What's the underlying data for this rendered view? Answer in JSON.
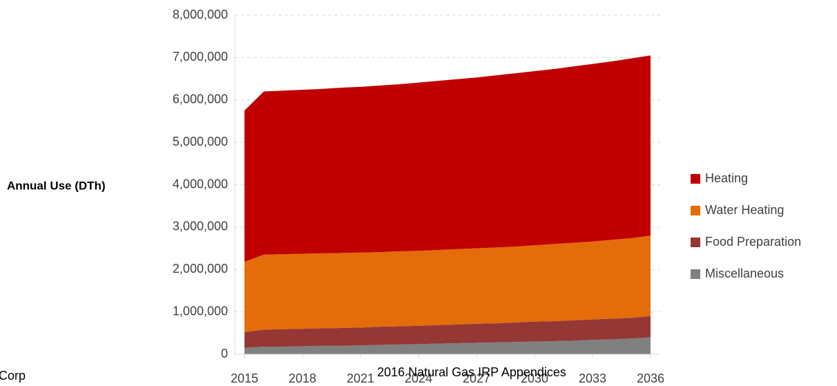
{
  "chart_data": {
    "type": "stacked_area",
    "y_label": "Annual Use (DTh)",
    "x": [
      2015,
      2016,
      2017,
      2018,
      2019,
      2020,
      2021,
      2022,
      2023,
      2024,
      2025,
      2026,
      2027,
      2028,
      2029,
      2030,
      2031,
      2032,
      2033,
      2034,
      2035,
      2036
    ],
    "series": [
      {
        "name": "Miscellaneous",
        "color": "#808080",
        "values": [
          150000,
          180000,
          180000,
          190000,
          200000,
          200000,
          210000,
          220000,
          230000,
          240000,
          250000,
          260000,
          270000,
          280000,
          290000,
          300000,
          310000,
          320000,
          340000,
          350000,
          370000,
          400000
        ]
      },
      {
        "name": "Food Preparation",
        "color": "#953735",
        "values": [
          370000,
          400000,
          410000,
          410000,
          410000,
          420000,
          420000,
          430000,
          430000,
          430000,
          440000,
          440000,
          450000,
          450000,
          460000,
          470000,
          470000,
          480000,
          480000,
          490000,
          490000,
          500000
        ]
      },
      {
        "name": "Water Heating",
        "color": "#e46c0a",
        "values": [
          1660000,
          1770000,
          1770000,
          1770000,
          1770000,
          1770000,
          1770000,
          1760000,
          1770000,
          1770000,
          1770000,
          1780000,
          1780000,
          1790000,
          1790000,
          1800000,
          1820000,
          1830000,
          1840000,
          1860000,
          1880000,
          1900000
        ]
      },
      {
        "name": "Heating",
        "color": "#c00000",
        "values": [
          3570000,
          3850000,
          3860000,
          3870000,
          3880000,
          3900000,
          3910000,
          3930000,
          3940000,
          3970000,
          3990000,
          4010000,
          4030000,
          4060000,
          4090000,
          4110000,
          4130000,
          4160000,
          4190000,
          4210000,
          4240000,
          4250000
        ]
      }
    ],
    "xlim": [
      2014.5,
      2036.5
    ],
    "xticks": [
      2015,
      2018,
      2021,
      2024,
      2027,
      2030,
      2033,
      2036
    ],
    "ylim": [
      0,
      8000000
    ],
    "yticks": [
      {
        "value": 0,
        "label": "0"
      },
      {
        "value": 1000000,
        "label": "1,000,000"
      },
      {
        "value": 2000000,
        "label": "2,000,000"
      },
      {
        "value": 3000000,
        "label": "3,000,000"
      },
      {
        "value": 4000000,
        "label": "4,000,000"
      },
      {
        "value": 5000000,
        "label": "5,000,000"
      },
      {
        "value": 6000000,
        "label": "6,000,000"
      },
      {
        "value": 7000000,
        "label": "7,000,000"
      },
      {
        "value": 8000000,
        "label": "8,000,000"
      }
    ],
    "grid": true,
    "legend": "right"
  },
  "footer": {
    "left": "Corp",
    "center": "2016 Natural Gas IRP Appendices"
  }
}
